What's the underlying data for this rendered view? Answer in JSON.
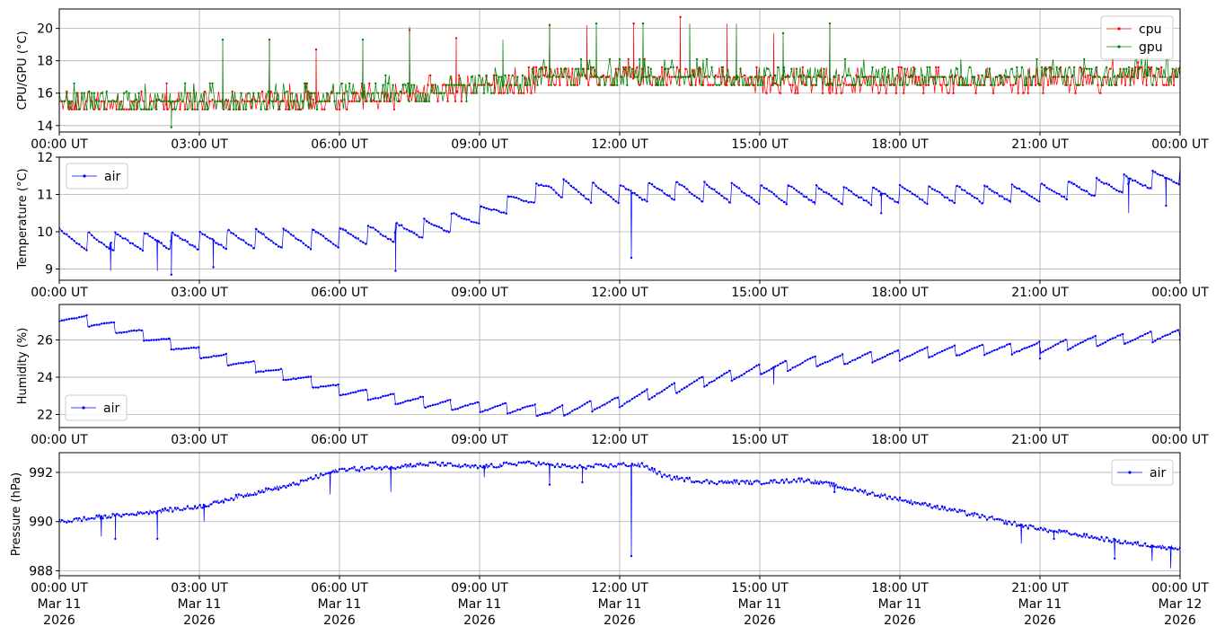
{
  "chart_data": [
    {
      "type": "line",
      "ylabel": "CPU/GPU (°C)",
      "ylim": [
        13.6,
        21.2
      ],
      "yticks": [
        14,
        16,
        18,
        20
      ],
      "xlim": [
        "2026-03-11T00:00Z",
        "2026-03-12T00:00Z"
      ],
      "x_tick_labels": [
        "00:00 UT",
        "03:00 UT",
        "06:00 UT",
        "09:00 UT",
        "12:00 UT",
        "15:00 UT",
        "18:00 UT",
        "21:00 UT",
        "00:00 UT"
      ],
      "grid": true,
      "legend_position": "top-right",
      "series": [
        {
          "name": "cpu",
          "color": "#ff0000",
          "x_hours": [
            0,
            1,
            2,
            3,
            4,
            5,
            6,
            7,
            8,
            9,
            10,
            10.5,
            11,
            12,
            13,
            13.5,
            14,
            15,
            16,
            17,
            18,
            19,
            20,
            21,
            22,
            23,
            24
          ],
          "values": [
            15.2,
            15.3,
            15.3,
            15.3,
            15.4,
            15.4,
            15.4,
            15.6,
            16.0,
            16.2,
            16.5,
            17.0,
            16.9,
            16.9,
            16.9,
            17.0,
            16.8,
            16.6,
            16.6,
            16.5,
            16.5,
            16.5,
            16.6,
            16.6,
            16.7,
            16.9,
            17.1
          ],
          "spikes": [
            [
              2.3,
              16.6
            ],
            [
              4.5,
              19.3
            ],
            [
              5.5,
              18.7
            ],
            [
              7.5,
              19.9
            ],
            [
              8.5,
              19.4
            ],
            [
              10.5,
              20.2
            ],
            [
              11.3,
              20.2
            ],
            [
              12.3,
              20.3
            ],
            [
              13.3,
              20.7
            ],
            [
              14.3,
              20.3
            ],
            [
              15.3,
              19.7
            ],
            [
              16.5,
              20.2
            ],
            [
              23.1,
              17.9
            ]
          ]
        },
        {
          "name": "gpu",
          "color": "#008000",
          "x_hours": [
            0,
            1,
            2,
            3,
            4,
            5,
            6,
            7,
            8,
            9,
            10,
            10.5,
            11,
            12,
            13,
            13.5,
            14,
            15,
            16,
            17,
            18,
            19,
            20,
            21,
            22,
            23,
            24
          ],
          "values": [
            15.4,
            15.5,
            15.4,
            15.4,
            15.5,
            15.6,
            15.6,
            15.8,
            16.1,
            16.3,
            16.6,
            17.1,
            17.0,
            17.0,
            17.0,
            17.1,
            16.9,
            16.8,
            16.9,
            16.8,
            16.9,
            16.9,
            16.9,
            17.0,
            17.0,
            17.1,
            17.1
          ],
          "spikes": [
            [
              2.4,
              13.9
            ],
            [
              3.5,
              19.3
            ],
            [
              4.5,
              19.3
            ],
            [
              6.5,
              19.3
            ],
            [
              7.5,
              20.1
            ],
            [
              9.5,
              19.3
            ],
            [
              10.5,
              20.3
            ],
            [
              11.5,
              20.3
            ],
            [
              12.5,
              20.3
            ],
            [
              13.5,
              20.3
            ],
            [
              14.5,
              20.3
            ],
            [
              15.5,
              19.7
            ],
            [
              16.5,
              20.3
            ],
            [
              23.3,
              18.2
            ]
          ]
        }
      ]
    },
    {
      "type": "line",
      "ylabel": "Temperature (°C)",
      "ylim": [
        8.7,
        12.0
      ],
      "yticks": [
        9,
        10,
        11,
        12
      ],
      "xlim": [
        "2026-03-11T00:00Z",
        "2026-03-12T00:00Z"
      ],
      "x_tick_labels": [
        "00:00 UT",
        "03:00 UT",
        "06:00 UT",
        "09:00 UT",
        "12:00 UT",
        "15:00 UT",
        "18:00 UT",
        "21:00 UT",
        "00:00 UT"
      ],
      "grid": true,
      "legend_position": "top-left",
      "series": [
        {
          "name": "air",
          "color": "#0000ff",
          "x_hours": [
            0,
            1,
            2,
            3,
            4,
            5,
            6,
            7,
            8,
            9,
            10,
            10.5,
            11,
            12,
            13,
            14,
            15,
            16,
            17,
            18,
            19,
            20,
            21,
            22,
            23,
            24
          ],
          "values": [
            9.8,
            9.7,
            9.75,
            9.75,
            9.8,
            9.8,
            9.85,
            9.95,
            10.1,
            10.45,
            10.9,
            11.2,
            11.1,
            11.0,
            11.1,
            11.05,
            11.0,
            11.0,
            10.95,
            11.0,
            11.0,
            11.0,
            11.05,
            11.15,
            11.3,
            11.5
          ],
          "sawtooth_amplitude": [
            0.55,
            0.5,
            0.5,
            0.5,
            0.55,
            0.55,
            0.55,
            0.55,
            0.55,
            0.5,
            0.5,
            0.55,
            0.55,
            0.55,
            0.55,
            0.55,
            0.55,
            0.5,
            0.5,
            0.5,
            0.5,
            0.5,
            0.5,
            0.5,
            0.5,
            0.5
          ],
          "spikes": [
            [
              1.1,
              8.95
            ],
            [
              2.1,
              8.95
            ],
            [
              2.4,
              8.85
            ],
            [
              3.3,
              9.05
            ],
            [
              7.2,
              8.95
            ],
            [
              12.25,
              9.3
            ],
            [
              17.6,
              10.5
            ],
            [
              22.9,
              10.5
            ],
            [
              23.7,
              10.7
            ]
          ]
        }
      ]
    },
    {
      "type": "line",
      "ylabel": "Humidity (%)",
      "ylim": [
        21.3,
        27.9
      ],
      "yticks": [
        22,
        24,
        26
      ],
      "xlim": [
        "2026-03-11T00:00Z",
        "2026-03-12T00:00Z"
      ],
      "x_tick_labels": [
        "00:00 UT",
        "03:00 UT",
        "06:00 UT",
        "09:00 UT",
        "12:00 UT",
        "15:00 UT",
        "18:00 UT",
        "21:00 UT",
        "00:00 UT"
      ],
      "grid": true,
      "legend_position": "bottom-left",
      "series": [
        {
          "name": "air",
          "color": "#0000ff",
          "x_hours": [
            0,
            1,
            2,
            3,
            4,
            5,
            6,
            7,
            8,
            9,
            10,
            10.5,
            11,
            12,
            13,
            14,
            15,
            16,
            17,
            18,
            19,
            20,
            21,
            22,
            23,
            24
          ],
          "values": [
            27.3,
            26.8,
            26.1,
            25.3,
            24.7,
            24.0,
            23.3,
            22.9,
            22.6,
            22.4,
            22.3,
            22.1,
            22.3,
            22.7,
            23.3,
            23.9,
            24.4,
            24.8,
            25.0,
            25.2,
            25.4,
            25.5,
            25.6,
            25.9,
            26.1,
            26.3
          ],
          "sawtooth_amplitude": [
            0.6,
            0.6,
            0.6,
            0.6,
            0.6,
            0.6,
            0.6,
            0.6,
            0.6,
            0.6,
            0.6,
            0.6,
            0.6,
            0.6,
            0.6,
            0.6,
            0.6,
            0.6,
            0.6,
            0.6,
            0.6,
            0.6,
            0.6,
            0.6,
            0.6,
            0.6
          ],
          "spikes": [
            [
              15.3,
              23.6
            ],
            [
              21.0,
              25.0
            ]
          ]
        }
      ]
    },
    {
      "type": "line",
      "ylabel": "Pressure (hPa)",
      "ylim": [
        987.8,
        992.8
      ],
      "yticks": [
        988,
        990,
        992
      ],
      "xlim": [
        "2026-03-11T00:00Z",
        "2026-03-12T00:00Z"
      ],
      "x_tick_labels": [
        "00:00 UT\nMar 11\n2026",
        "03:00 UT\nMar 11\n2026",
        "06:00 UT\nMar 11\n2026",
        "09:00 UT\nMar 11\n2026",
        "12:00 UT\nMar 11\n2026",
        "15:00 UT\nMar 11\n2026",
        "18:00 UT\nMar 11\n2026",
        "21:00 UT\nMar 11\n2026",
        "00:00 UT\nMar 12\n2026"
      ],
      "grid": true,
      "legend_position": "top-right",
      "series": [
        {
          "name": "air",
          "color": "#0000ff",
          "x_hours": [
            0,
            1,
            2,
            3,
            4,
            5,
            6,
            7,
            8,
            9,
            10,
            11,
            12,
            12.5,
            13,
            14,
            15,
            16,
            17,
            18,
            19,
            20,
            21,
            22,
            23,
            24
          ],
          "values": [
            990.0,
            990.2,
            990.4,
            990.6,
            991.1,
            991.5,
            992.1,
            992.2,
            992.35,
            992.2,
            992.4,
            992.2,
            992.3,
            992.3,
            991.8,
            991.6,
            991.6,
            991.7,
            991.3,
            990.9,
            990.5,
            990.1,
            989.7,
            989.4,
            989.1,
            988.9
          ],
          "spikes": [
            [
              0.9,
              989.4
            ],
            [
              1.2,
              989.3
            ],
            [
              2.1,
              989.3
            ],
            [
              3.1,
              990.0
            ],
            [
              5.8,
              991.1
            ],
            [
              7.1,
              991.2
            ],
            [
              9.1,
              991.8
            ],
            [
              10.5,
              991.5
            ],
            [
              11.2,
              991.6
            ],
            [
              12.25,
              988.6
            ],
            [
              16.6,
              991.2
            ],
            [
              20.6,
              989.1
            ],
            [
              21.3,
              989.3
            ],
            [
              22.6,
              988.5
            ],
            [
              23.4,
              988.4
            ],
            [
              23.8,
              988.1
            ]
          ]
        }
      ]
    }
  ]
}
